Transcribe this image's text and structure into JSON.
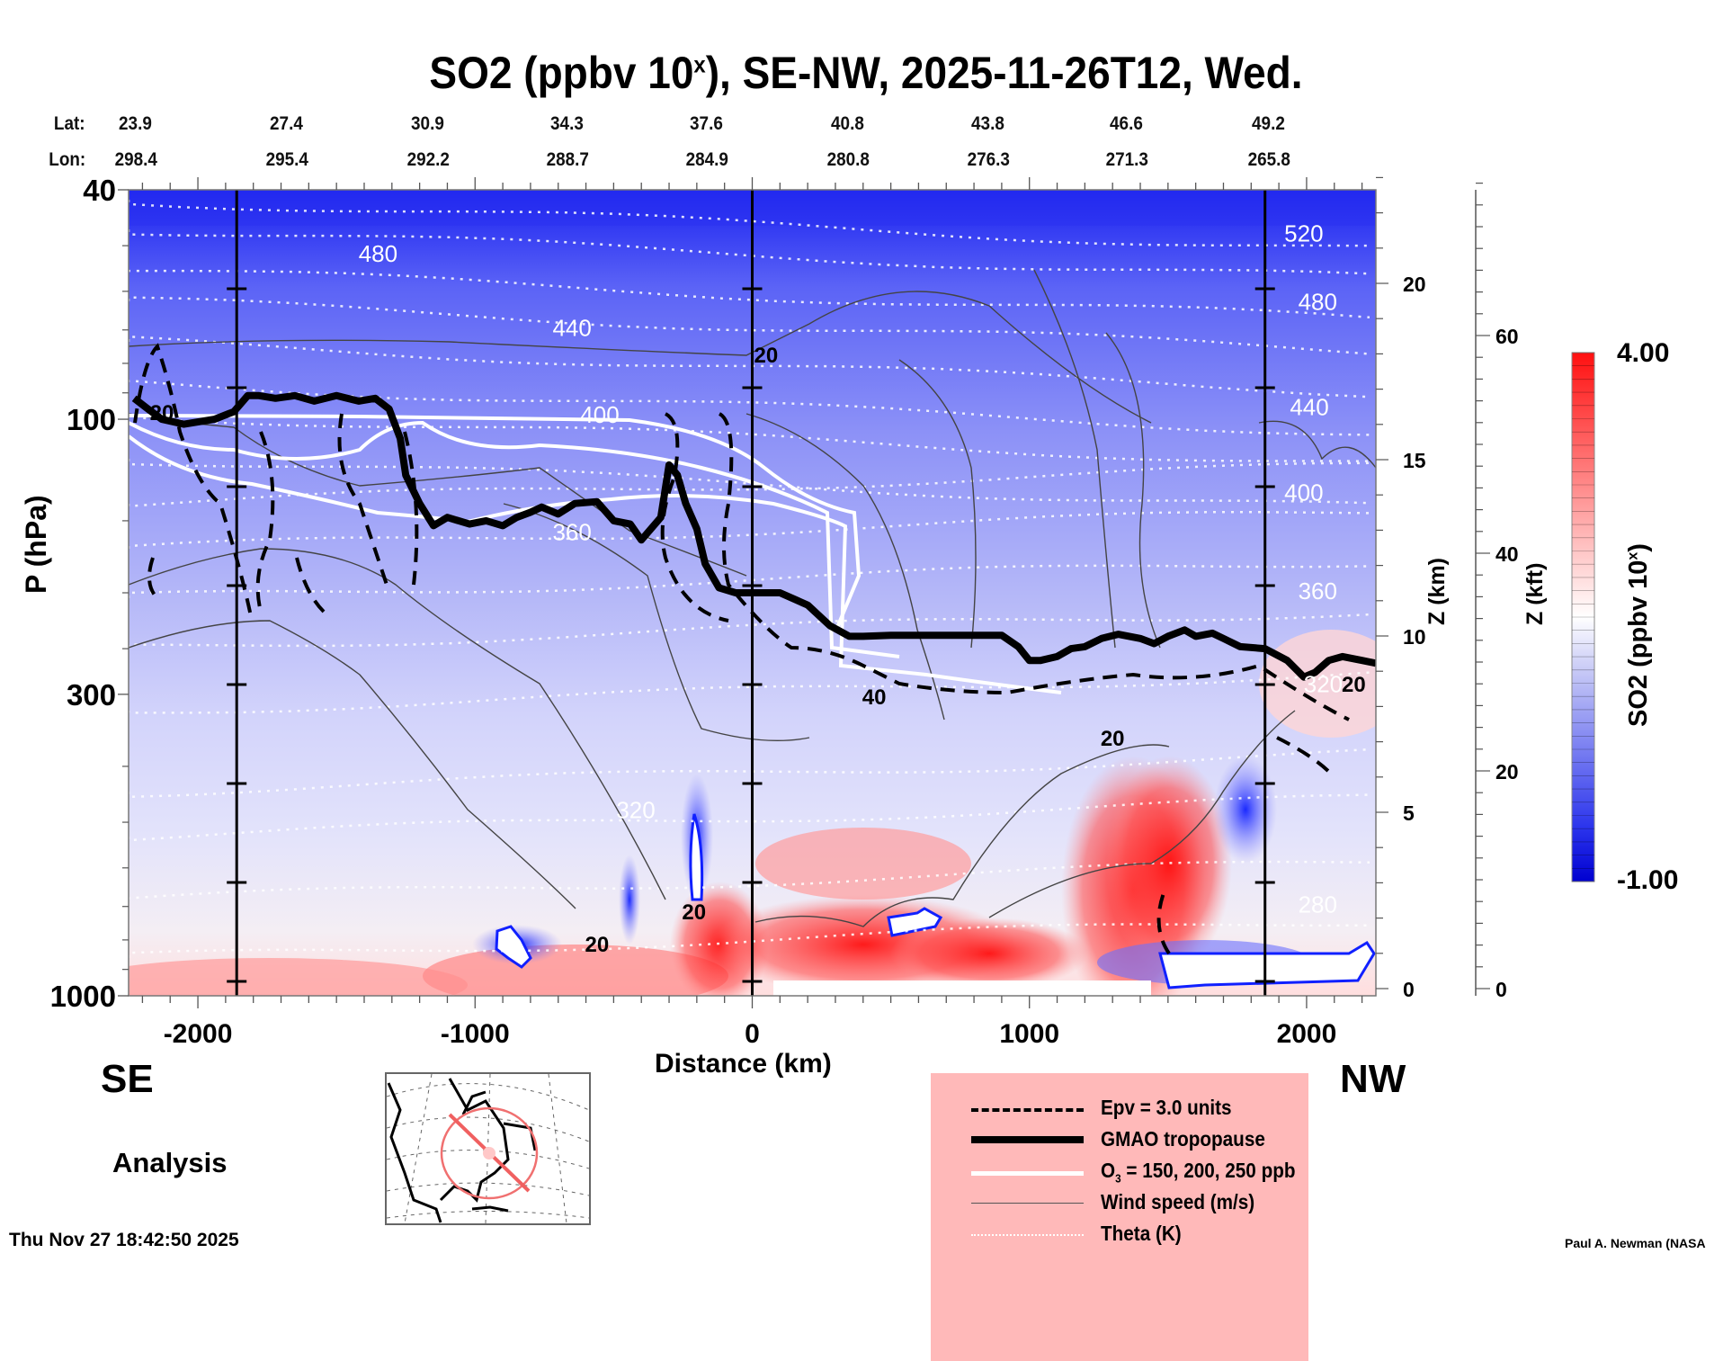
{
  "title": {
    "main": "SO2 (ppbv 10",
    "sup": "x",
    "rest": "), SE-NW, 2025-11-26T12, Wed."
  },
  "coords": {
    "lat_label": "Lat:",
    "lon_label": "Lon:",
    "lat": [
      "23.9",
      "27.4",
      "30.9",
      "34.3",
      "37.6",
      "40.8",
      "43.8",
      "46.6",
      "49.2"
    ],
    "lon": [
      "298.4",
      "295.4",
      "292.2",
      "288.7",
      "284.9",
      "280.8",
      "276.3",
      "271.3",
      "265.8"
    ]
  },
  "labels": {
    "se": "SE",
    "nw": "NW",
    "analysis": "Analysis",
    "timestamp": "Thu Nov 27 18:42:50 2025",
    "credit": "Paul A. Newman (NASA"
  },
  "chart_data": {
    "type": "heatmap",
    "title": "SO2 (ppbv 10^x), SE-NW, 2025-11-26T12, Wed.",
    "xlabel": "Distance (km)",
    "ylabel": "P (hPa)",
    "ylabel_right_1": "Z (km)",
    "ylabel_right_2": "Z (kft)",
    "xlim": [
      -2250,
      2250
    ],
    "ylim": [
      1000,
      40
    ],
    "yscale": "log",
    "x_ticks": [
      -2000,
      -1000,
      0,
      1000,
      2000
    ],
    "x_tick_labels": [
      "-2000",
      "-1000",
      "0",
      "1000",
      "2000"
    ],
    "y_ticks": [
      40,
      100,
      300,
      1000
    ],
    "y_tick_labels": [
      "40",
      "100",
      "300",
      "1000"
    ],
    "z_km_ticks": [
      0,
      5,
      10,
      15,
      20
    ],
    "z_kft_ticks": [
      0,
      20,
      40,
      60
    ],
    "vertical_markers_km": [
      -1860,
      0,
      1850
    ],
    "colorbar": {
      "label": "SO2 (ppbv 10^x)",
      "min": -1.0,
      "max": 4.0,
      "min_label": "-1.00",
      "max_label": "4.00",
      "colors": [
        "#0000e0",
        "#ffffff",
        "#ff0000"
      ]
    },
    "theta_labels": [
      {
        "value": "480",
        "x_km": -1350,
        "p": 52
      },
      {
        "value": "440",
        "x_km": -650,
        "p": 70
      },
      {
        "value": "400",
        "x_km": -550,
        "p": 99
      },
      {
        "value": "360",
        "x_km": -650,
        "p": 158
      },
      {
        "value": "320",
        "x_km": -420,
        "p": 480
      },
      {
        "value": "520",
        "x_km": 1990,
        "p": 48
      },
      {
        "value": "480",
        "x_km": 2040,
        "p": 63
      },
      {
        "value": "440",
        "x_km": 2010,
        "p": 96
      },
      {
        "value": "400",
        "x_km": 1990,
        "p": 135
      },
      {
        "value": "360",
        "x_km": 2040,
        "p": 200
      },
      {
        "value": "320",
        "x_km": 2060,
        "p": 290
      },
      {
        "value": "280",
        "x_km": 2040,
        "p": 700
      }
    ],
    "wind_labels": [
      {
        "value": "20",
        "x_km": -2130,
        "p": 98
      },
      {
        "value": "20",
        "x_km": 50,
        "p": 78
      },
      {
        "value": "20",
        "x_km": 1300,
        "p": 360
      },
      {
        "value": "20",
        "x_km": 2170,
        "p": 290
      },
      {
        "value": "20",
        "x_km": -210,
        "p": 720
      },
      {
        "value": "20",
        "x_km": -560,
        "p": 820
      },
      {
        "value": "40",
        "x_km": 440,
        "p": 305
      }
    ],
    "tropopause": {
      "x_km": [
        -2230,
        -2180,
        -2130,
        -2050,
        -1940,
        -1870,
        -1820,
        -1780,
        -1720,
        -1650,
        -1580,
        -1500,
        -1420,
        -1360,
        -1310,
        -1270,
        -1250,
        -1200,
        -1150,
        -1100,
        -1020,
        -960,
        -900,
        -850,
        -800,
        -760,
        -700,
        -640,
        -560,
        -500,
        -440,
        -400,
        -330,
        -300,
        -270,
        -240,
        -200,
        -170,
        -120,
        -60,
        0,
        100,
        200,
        280,
        350,
        400,
        500,
        600,
        700,
        800,
        900,
        960,
        1000,
        1040,
        1100,
        1150,
        1200,
        1260,
        1320,
        1400,
        1450,
        1500,
        1560,
        1600,
        1660,
        1700,
        1760,
        1850,
        1930,
        1990,
        2030,
        2080,
        2130,
        2200,
        2250
      ],
      "p": [
        92,
        96,
        100,
        102,
        100,
        97,
        91,
        91,
        92,
        91,
        93,
        91,
        93,
        92,
        96,
        108,
        125,
        140,
        153,
        148,
        152,
        150,
        153,
        148,
        145,
        142,
        146,
        140,
        139,
        150,
        152,
        162,
        148,
        120,
        125,
        140,
        155,
        178,
        196,
        200,
        200,
        200,
        210,
        228,
        238,
        238,
        237,
        237,
        237,
        237,
        237,
        248,
        262,
        262,
        258,
        250,
        248,
        240,
        236,
        240,
        245,
        238,
        232,
        238,
        235,
        240,
        248,
        250,
        262,
        280,
        275,
        262,
        258,
        262,
        265
      ]
    },
    "legend": [
      {
        "style": "dashed",
        "label": "Epv = 3.0 units"
      },
      {
        "style": "thick",
        "label": "GMAO tropopause"
      },
      {
        "style": "white",
        "label": "O3 = 150, 200, 250 ppb"
      },
      {
        "style": "thin",
        "label": "Wind speed (m/s)"
      },
      {
        "style": "dotted",
        "label": "Theta (K)"
      }
    ],
    "legend_placement": "bottom-right"
  }
}
